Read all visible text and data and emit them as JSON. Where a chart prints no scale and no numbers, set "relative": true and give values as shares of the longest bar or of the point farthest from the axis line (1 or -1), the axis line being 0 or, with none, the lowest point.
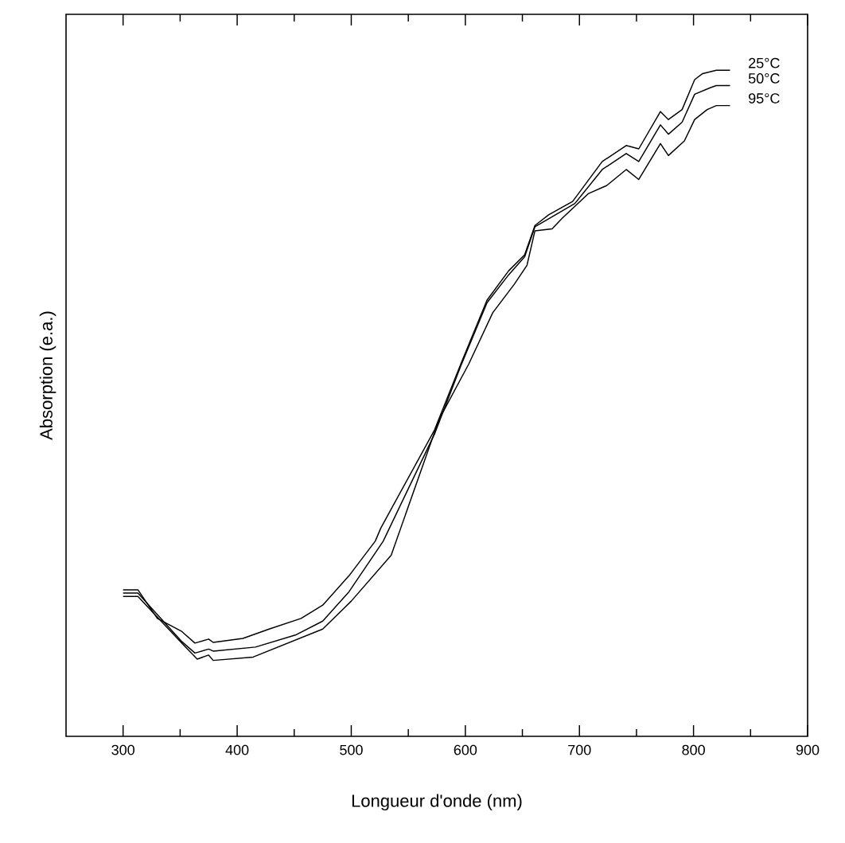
{
  "chart_data": {
    "type": "line",
    "xlabel": "Longueur d'onde (nm)",
    "ylabel": "Absorption (e.a.)",
    "relative": true,
    "xlim": [
      250,
      900
    ],
    "xticks": [
      300,
      400,
      500,
      600,
      700,
      800,
      900
    ],
    "series": [
      {
        "name": "25°C",
        "color": "#000000",
        "x": [
          300,
          313,
          330,
          351,
          363,
          375,
          379,
          405,
          428,
          456,
          475,
          498,
          521,
          526,
          573,
          596,
          619,
          638,
          652,
          661,
          673,
          694,
          720,
          741,
          752,
          771,
          778,
          790,
          801,
          808,
          820,
          832
        ],
        "values": [
          0.22,
          0.22,
          0.177,
          0.158,
          0.14,
          0.146,
          0.141,
          0.147,
          0.161,
          0.177,
          0.197,
          0.241,
          0.293,
          0.313,
          0.46,
          0.559,
          0.655,
          0.699,
          0.723,
          0.767,
          0.783,
          0.803,
          0.863,
          0.887,
          0.882,
          0.938,
          0.926,
          0.941,
          0.986,
          0.995,
          1.0,
          1.0
        ]
      },
      {
        "name": "50°C",
        "color": "#000000",
        "x": [
          300,
          313,
          351,
          363,
          375,
          379,
          416,
          451,
          475,
          498,
          528,
          573,
          596,
          619,
          638,
          652,
          661,
          673,
          696,
          720,
          741,
          752,
          771,
          778,
          790,
          801,
          815,
          820,
          832
        ],
        "values": [
          0.215,
          0.215,
          0.143,
          0.125,
          0.131,
          0.128,
          0.134,
          0.152,
          0.173,
          0.217,
          0.293,
          0.454,
          0.556,
          0.651,
          0.693,
          0.72,
          0.765,
          0.777,
          0.8,
          0.851,
          0.875,
          0.863,
          0.918,
          0.904,
          0.922,
          0.964,
          0.974,
          0.977,
          0.977
        ]
      },
      {
        "name": "95°C",
        "color": "#000000",
        "x": [
          300,
          313,
          353,
          365,
          375,
          379,
          414,
          475,
          500,
          535,
          577,
          603,
          624,
          643,
          654,
          661,
          676,
          685,
          708,
          724,
          741,
          752,
          771,
          778,
          792,
          801,
          812,
          820,
          832
        ],
        "values": [
          0.21,
          0.21,
          0.137,
          0.116,
          0.122,
          0.114,
          0.119,
          0.161,
          0.203,
          0.272,
          0.476,
          0.559,
          0.636,
          0.679,
          0.707,
          0.759,
          0.762,
          0.778,
          0.815,
          0.827,
          0.851,
          0.836,
          0.89,
          0.872,
          0.894,
          0.926,
          0.941,
          0.947,
          0.947
        ]
      }
    ]
  }
}
